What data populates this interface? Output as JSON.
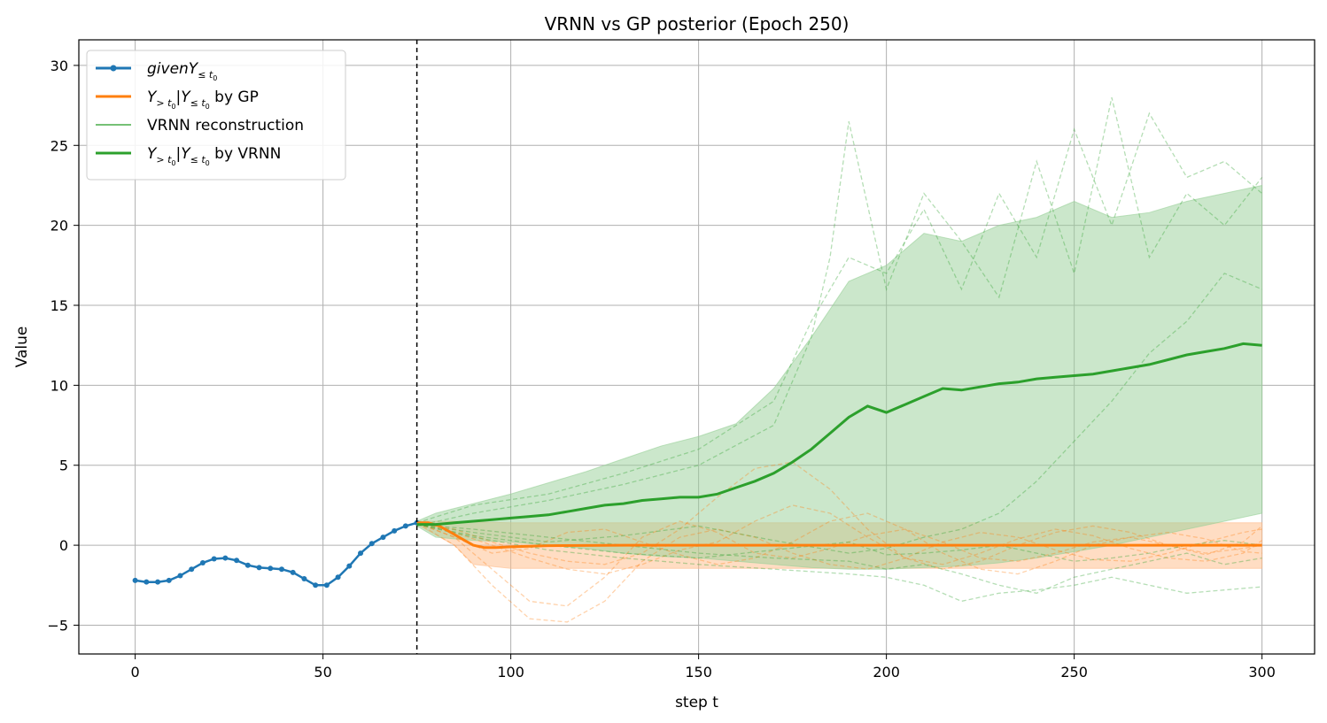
{
  "chart_data": {
    "type": "line",
    "title": "VRNN vs GP posterior (Epoch 250)",
    "xlabel": "step t",
    "ylabel": "Value",
    "xlim": [
      -15,
      314
    ],
    "ylim": [
      -6.8,
      31.6
    ],
    "xticks": [
      0,
      50,
      100,
      150,
      200,
      250,
      300
    ],
    "yticks": [
      -5,
      0,
      5,
      10,
      15,
      20,
      25,
      30
    ],
    "grid": true,
    "legend_position": "top-left",
    "t0": 75,
    "colors": {
      "given": "#1f77b4",
      "gp": "#ff7f0e",
      "vrnn_recon": "#2ca02c",
      "vrnn_mean": "#2ca02c",
      "gp_band": "#ffbb88",
      "vrnn_band": "#98d098"
    },
    "legend": [
      {
        "key": "given",
        "math_main": "givenY",
        "math_sub": "≤ t",
        "math_subsub": "0",
        "suffix": ""
      },
      {
        "key": "gp",
        "math_main": "Y",
        "math_sub": "> t",
        "math_subsub": "0",
        "mid": "|Y",
        "mid_sub": "≤ t",
        "mid_subsub": "0",
        "suffix": " by GP"
      },
      {
        "key": "vrnn_recon",
        "text": "VRNN reconstruction"
      },
      {
        "key": "vrnn_mean",
        "math_main": "Y",
        "math_sub": "> t",
        "math_subsub": "0",
        "mid": "|Y",
        "mid_sub": "≤ t",
        "mid_subsub": "0",
        "suffix": " by VRNN"
      }
    ],
    "series": [
      {
        "name": "givenY≤t0",
        "key": "given",
        "x": [
          0,
          3,
          6,
          9,
          12,
          15,
          18,
          21,
          24,
          27,
          30,
          33,
          36,
          39,
          42,
          45,
          48,
          51,
          54,
          57,
          60,
          63,
          66,
          69,
          72,
          75
        ],
        "y": [
          -2.2,
          -2.3,
          -2.3,
          -2.2,
          -1.9,
          -1.5,
          -1.1,
          -0.85,
          -0.8,
          -0.95,
          -1.25,
          -1.4,
          -1.45,
          -1.5,
          -1.7,
          -2.1,
          -2.5,
          -2.5,
          -2.0,
          -1.3,
          -0.5,
          0.1,
          0.5,
          0.9,
          1.2,
          1.4
        ]
      },
      {
        "name": "Y>t0|Y≤t0 by GP",
        "key": "gp",
        "x": [
          75,
          78,
          81,
          84,
          87,
          90,
          93,
          96,
          100,
          110,
          130,
          300
        ],
        "y": [
          1.4,
          1.4,
          1.2,
          0.8,
          0.4,
          0.0,
          -0.15,
          -0.15,
          -0.1,
          -0.03,
          0.0,
          0.0
        ]
      },
      {
        "name": "Y>t0|Y≤t0 by VRNN",
        "key": "vrnn_mean",
        "x": [
          75,
          80,
          85,
          90,
          95,
          100,
          105,
          110,
          115,
          120,
          125,
          130,
          135,
          140,
          145,
          150,
          155,
          160,
          165,
          170,
          175,
          180,
          185,
          190,
          195,
          200,
          205,
          210,
          215,
          220,
          225,
          230,
          235,
          240,
          245,
          250,
          255,
          260,
          265,
          270,
          275,
          280,
          285,
          290,
          295,
          300
        ],
        "y": [
          1.3,
          1.3,
          1.4,
          1.5,
          1.6,
          1.7,
          1.8,
          1.9,
          2.1,
          2.3,
          2.5,
          2.6,
          2.8,
          2.9,
          3.0,
          3.0,
          3.2,
          3.6,
          4.0,
          4.5,
          5.2,
          6.0,
          7.0,
          8.0,
          8.7,
          8.3,
          8.8,
          9.3,
          9.8,
          9.7,
          9.9,
          10.1,
          10.2,
          10.4,
          10.5,
          10.6,
          10.7,
          10.9,
          11.1,
          11.3,
          11.6,
          11.9,
          12.1,
          12.3,
          12.6,
          12.5
        ]
      }
    ],
    "bands": [
      {
        "key": "gp_band",
        "x": [
          75,
          85,
          90,
          100,
          300
        ],
        "upper": [
          1.5,
          1.5,
          1.45,
          1.4,
          1.4
        ],
        "lower": [
          1.3,
          0.0,
          -1.2,
          -1.45,
          -1.45
        ]
      },
      {
        "key": "vrnn_band",
        "x": [
          75,
          80,
          90,
          100,
          110,
          120,
          130,
          140,
          150,
          160,
          170,
          180,
          190,
          200,
          210,
          220,
          230,
          240,
          250,
          260,
          270,
          280,
          290,
          300
        ],
        "upper": [
          1.5,
          2.0,
          2.6,
          3.2,
          3.9,
          4.6,
          5.4,
          6.2,
          6.8,
          7.6,
          9.8,
          13.0,
          16.5,
          17.5,
          19.5,
          19.0,
          20.0,
          20.5,
          21.5,
          20.5,
          20.8,
          21.5,
          22.0,
          22.5
        ],
        "lower": [
          1.2,
          0.5,
          0.3,
          0.2,
          0.0,
          -0.2,
          -0.5,
          -0.7,
          -0.8,
          -1.0,
          -1.2,
          -1.4,
          -1.5,
          -1.5,
          -1.4,
          -1.3,
          -1.1,
          -0.8,
          -0.4,
          0.0,
          0.5,
          1.0,
          1.5,
          2.0
        ]
      }
    ],
    "vrnn_samples": [
      {
        "x": [
          75,
          90,
          110,
          130,
          150,
          170,
          180,
          190,
          200,
          210,
          220,
          230,
          240,
          250,
          260,
          270,
          280,
          290,
          300
        ],
        "y": [
          1.4,
          2.5,
          3.2,
          4.5,
          6.0,
          9.0,
          14.0,
          18.0,
          17.0,
          21.0,
          16.0,
          22.0,
          18.0,
          26.0,
          20.0,
          27.0,
          23.0,
          24.0,
          22.0
        ]
      },
      {
        "x": [
          75,
          90,
          110,
          130,
          150,
          170,
          180,
          185,
          190,
          200,
          210,
          220,
          230,
          240,
          250,
          260,
          270,
          280,
          290,
          300
        ],
        "y": [
          1.2,
          2.0,
          2.8,
          3.8,
          5.0,
          7.5,
          13.0,
          18.0,
          26.5,
          16.0,
          22.0,
          19.0,
          15.5,
          24.0,
          17.0,
          28.0,
          18.0,
          22.0,
          20.0,
          23.0
        ]
      },
      {
        "x": [
          75,
          90,
          110,
          130,
          150,
          170,
          190,
          200,
          210,
          220,
          230,
          240,
          250,
          260,
          270,
          280,
          290,
          300
        ],
        "y": [
          1.3,
          1.0,
          0.5,
          0.0,
          -0.5,
          -0.8,
          -1.0,
          -1.5,
          -1.2,
          -1.8,
          -2.5,
          -3.0,
          -2.0,
          -1.5,
          -1.0,
          -0.5,
          -1.2,
          -0.8
        ]
      },
      {
        "x": [
          75,
          90,
          110,
          130,
          150,
          170,
          190,
          200,
          210,
          220,
          230,
          240,
          250,
          260,
          270,
          280,
          290,
          300
        ],
        "y": [
          1.3,
          0.5,
          -0.3,
          -0.8,
          -1.2,
          -1.5,
          -1.8,
          -2.0,
          -2.5,
          -3.5,
          -3.0,
          -2.8,
          -2.5,
          -2.0,
          -2.5,
          -3.0,
          -2.8,
          -2.6
        ]
      },
      {
        "x": [
          75,
          90,
          110,
          130,
          150,
          170,
          190,
          200,
          210,
          220,
          230,
          240,
          250,
          260,
          270,
          280,
          290,
          300
        ],
        "y": [
          1.3,
          0.8,
          0.2,
          0.6,
          1.2,
          0.3,
          -0.5,
          -0.2,
          0.5,
          1.0,
          2.0,
          4.0,
          6.5,
          9.0,
          12.0,
          14.0,
          17.0,
          16.0
        ]
      },
      {
        "x": [
          75,
          90,
          110,
          130,
          150,
          170,
          190,
          200,
          210,
          220,
          230,
          240,
          250,
          260,
          270,
          280,
          290,
          300
        ],
        "y": [
          1.3,
          0.6,
          0.0,
          -0.5,
          -0.8,
          -0.3,
          0.2,
          -0.6,
          -0.5,
          -0.3,
          0.0,
          -0.5,
          -1.0,
          -0.8,
          -0.5,
          0.0,
          0.3,
          0.0
        ]
      }
    ],
    "gp_samples": [
      {
        "x": [
          75,
          85,
          95,
          105,
          115,
          125,
          135,
          145,
          155,
          165,
          175,
          185,
          195,
          205,
          215,
          225,
          235,
          245,
          255,
          265,
          275,
          285,
          295,
          300
        ],
        "y": [
          1.4,
          0.5,
          -1.5,
          -3.5,
          -3.8,
          -2.0,
          0.5,
          1.5,
          0.8,
          -0.5,
          -0.8,
          -0.2,
          0.6,
          1.0,
          0.2,
          -0.8,
          -1.0,
          -0.5,
          0.2,
          0.5,
          0.0,
          -0.5,
          -0.2,
          0.0
        ]
      },
      {
        "x": [
          75,
          85,
          95,
          105,
          115,
          125,
          135,
          145,
          155,
          165,
          175,
          185,
          195,
          205,
          215,
          225,
          235,
          245,
          255,
          265,
          275,
          285,
          295,
          300
        ],
        "y": [
          1.4,
          0.0,
          -2.5,
          -4.6,
          -4.8,
          -3.5,
          -1.0,
          0.5,
          1.0,
          0.5,
          -0.5,
          -1.2,
          -1.5,
          -0.8,
          0.2,
          0.8,
          0.5,
          -0.3,
          -0.9,
          -1.0,
          -0.5,
          0.2,
          0.8,
          1.0
        ]
      },
      {
        "x": [
          75,
          85,
          95,
          105,
          115,
          125,
          135,
          145,
          155,
          165,
          175,
          185,
          195,
          205,
          215,
          225,
          235,
          245,
          255,
          265,
          275,
          285,
          295,
          300
        ],
        "y": [
          1.4,
          1.0,
          0.2,
          -0.5,
          -1.0,
          -1.2,
          -0.5,
          1.0,
          3.0,
          4.8,
          5.2,
          3.5,
          1.0,
          -0.8,
          -1.2,
          -0.5,
          0.4,
          1.0,
          0.6,
          -0.2,
          -0.8,
          -1.0,
          -0.5,
          0.3
        ]
      },
      {
        "x": [
          75,
          85,
          95,
          105,
          115,
          125,
          135,
          145,
          155,
          165,
          175,
          185,
          195,
          205,
          215,
          225,
          235,
          245,
          255,
          265,
          275,
          285,
          295,
          300
        ],
        "y": [
          1.4,
          0.8,
          0.0,
          -0.8,
          -1.5,
          -1.8,
          -1.2,
          -0.3,
          0.2,
          1.5,
          2.5,
          2.0,
          0.5,
          -0.8,
          -1.5,
          -1.0,
          0.0,
          0.8,
          1.2,
          0.8,
          0.0,
          -0.6,
          0.2,
          1.2
        ]
      },
      {
        "x": [
          75,
          85,
          95,
          105,
          115,
          125,
          135,
          145,
          155,
          165,
          175,
          185,
          195,
          205,
          215,
          225,
          235,
          245,
          255,
          265,
          275,
          285,
          295,
          300
        ],
        "y": [
          1.4,
          0.5,
          -0.5,
          -0.2,
          0.8,
          1.0,
          0.2,
          -0.6,
          -1.2,
          -0.8,
          0.2,
          1.5,
          2.0,
          1.0,
          -0.5,
          -1.5,
          -1.8,
          -1.0,
          0.0,
          0.5,
          0.8,
          0.4,
          -0.4,
          -0.5
        ]
      }
    ]
  }
}
